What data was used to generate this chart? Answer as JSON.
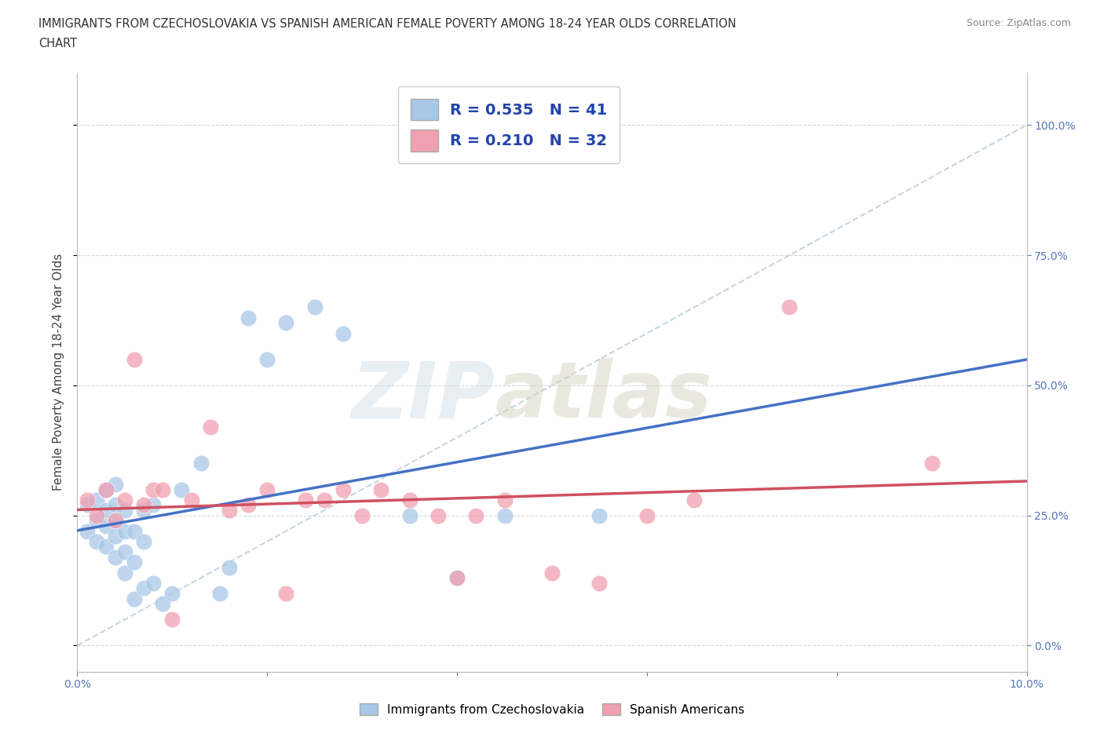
{
  "title_line1": "IMMIGRANTS FROM CZECHOSLOVAKIA VS SPANISH AMERICAN FEMALE POVERTY AMONG 18-24 YEAR OLDS CORRELATION",
  "title_line2": "CHART",
  "source": "Source: ZipAtlas.com",
  "ylabel": "Female Poverty Among 18-24 Year Olds",
  "xlim": [
    0.0,
    0.1
  ],
  "ylim": [
    -0.05,
    1.1
  ],
  "blue_color": "#a8c8e8",
  "pink_color": "#f0a0b0",
  "blue_line_color": "#4472c4",
  "pink_line_color": "#d05060",
  "diag_line_color": "#b8ccd8",
  "R_blue": 0.535,
  "N_blue": 41,
  "R_pink": 0.21,
  "N_pink": 32,
  "blue_scatter_x": [
    0.001,
    0.001,
    0.002,
    0.002,
    0.002,
    0.003,
    0.003,
    0.003,
    0.003,
    0.004,
    0.004,
    0.004,
    0.004,
    0.004,
    0.005,
    0.005,
    0.005,
    0.005,
    0.006,
    0.006,
    0.006,
    0.007,
    0.007,
    0.007,
    0.008,
    0.008,
    0.009,
    0.01,
    0.011,
    0.013,
    0.015,
    0.016,
    0.018,
    0.02,
    0.022,
    0.025,
    0.028,
    0.035,
    0.04,
    0.045,
    0.055
  ],
  "blue_scatter_y": [
    0.22,
    0.27,
    0.2,
    0.24,
    0.28,
    0.19,
    0.23,
    0.26,
    0.3,
    0.17,
    0.21,
    0.24,
    0.27,
    0.31,
    0.14,
    0.18,
    0.22,
    0.26,
    0.09,
    0.16,
    0.22,
    0.11,
    0.2,
    0.26,
    0.12,
    0.27,
    0.08,
    0.1,
    0.3,
    0.35,
    0.1,
    0.15,
    0.63,
    0.55,
    0.62,
    0.65,
    0.6,
    0.25,
    0.13,
    0.25,
    0.25
  ],
  "pink_scatter_x": [
    0.001,
    0.002,
    0.003,
    0.004,
    0.005,
    0.006,
    0.007,
    0.008,
    0.009,
    0.01,
    0.012,
    0.014,
    0.016,
    0.018,
    0.02,
    0.022,
    0.024,
    0.026,
    0.028,
    0.03,
    0.032,
    0.035,
    0.038,
    0.04,
    0.042,
    0.045,
    0.05,
    0.055,
    0.06,
    0.065,
    0.075,
    0.09
  ],
  "pink_scatter_y": [
    0.28,
    0.25,
    0.3,
    0.24,
    0.28,
    0.55,
    0.27,
    0.3,
    0.3,
    0.05,
    0.28,
    0.42,
    0.26,
    0.27,
    0.3,
    0.1,
    0.28,
    0.28,
    0.3,
    0.25,
    0.3,
    0.28,
    0.25,
    0.13,
    0.25,
    0.28,
    0.14,
    0.12,
    0.25,
    0.28,
    0.65,
    0.35
  ]
}
